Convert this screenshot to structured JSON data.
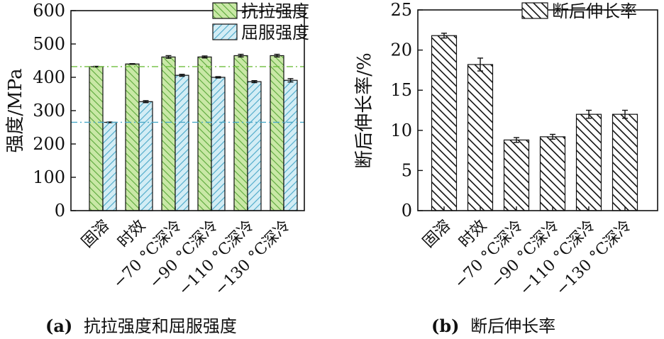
{
  "chart_data": [
    {
      "type": "bar",
      "panel": "(a)",
      "caption": "抗拉强度和屈服强度",
      "categories": [
        "固溶",
        "时效",
        "−70 °C深冷",
        "−90 °C深冷",
        "−110 °C深冷",
        "−130 °C深冷"
      ],
      "series": [
        {
          "name": "抗拉强度",
          "values": [
            432,
            440,
            461,
            461,
            465,
            465
          ],
          "errors": [
            1,
            1,
            4,
            3,
            4,
            4
          ],
          "color": "#6fbf3f",
          "fill_color": "#c9e8a6"
        },
        {
          "name": "屈服强度",
          "values": [
            265,
            327,
            406,
            400,
            387,
            391
          ],
          "errors": [
            1,
            3,
            3,
            2,
            3,
            5
          ],
          "color": "#4aa8c8",
          "fill_color": "#bfe3ef"
        }
      ],
      "ylabel": "强度/MPa",
      "ylim": [
        0,
        600
      ],
      "yticks": [
        "0",
        "100",
        "200",
        "300",
        "400",
        "500",
        "600"
      ],
      "reference_lines": [
        {
          "value": 432,
          "color": "#6fbf3f",
          "style": "dash-dot"
        },
        {
          "value": 265,
          "color": "#4aa8c8",
          "style": "dash-dot"
        }
      ],
      "legend_placement": "top-right",
      "grid": false
    },
    {
      "type": "bar",
      "panel": "(b)",
      "caption": "断后伸长率",
      "categories": [
        "固溶",
        "时效",
        "−70 °C深冷",
        "−90 °C深冷",
        "−110 °C深冷",
        "−130 °C深冷"
      ],
      "series": [
        {
          "name": "断后伸长率",
          "values": [
            21.8,
            18.2,
            8.8,
            9.2,
            12.0,
            12.0
          ],
          "errors": [
            0.3,
            0.8,
            0.3,
            0.3,
            0.5,
            0.5
          ],
          "color": "#111111",
          "fill_color": "#ffffff"
        }
      ],
      "ylabel": "断后伸长率/%",
      "ylim": [
        0,
        25
      ],
      "yticks": [
        "0",
        "5",
        "10",
        "15",
        "20",
        "25"
      ],
      "legend_placement": "top-right",
      "grid": false
    }
  ]
}
